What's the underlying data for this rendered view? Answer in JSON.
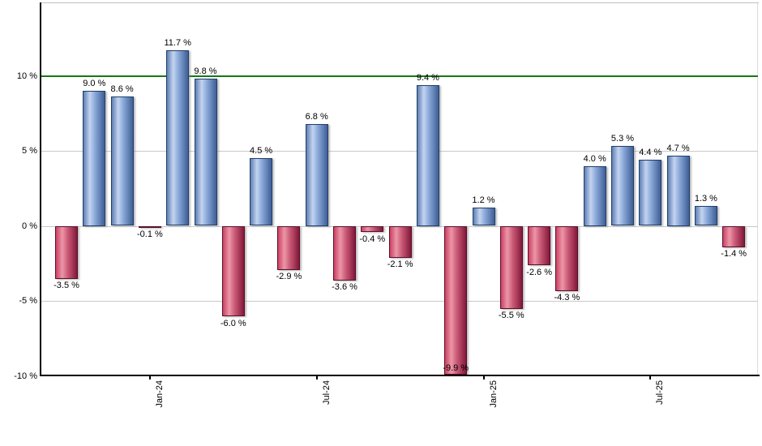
{
  "chart_data": {
    "type": "bar",
    "title": "",
    "values": [
      -3.5,
      9.0,
      8.6,
      -0.1,
      11.7,
      9.8,
      -6.0,
      4.5,
      -2.9,
      6.8,
      -3.6,
      -0.4,
      -2.1,
      9.4,
      -9.9,
      1.2,
      -5.5,
      -2.6,
      -4.3,
      4.0,
      5.3,
      4.4,
      4.7,
      1.3,
      -1.4
    ],
    "bar_labels": [
      "-3.5 %",
      "9.0 %",
      "8.6 %",
      "-0.1 %",
      "11.7 %",
      "9.8 %",
      "-6.0 %",
      "4.5 %",
      "-2.9 %",
      "6.8 %",
      "-3.6 %",
      "-0.4 %",
      "-2.1 %",
      "9.4 %",
      "-9.9 %",
      "1.2 %",
      "-5.5 %",
      "-2.6 %",
      "-4.3 %",
      "4.0 %",
      "5.3 %",
      "4.4 %",
      "4.7 %",
      "1.3 %",
      "-1.4 %"
    ],
    "x_tick_labels": [
      "Jan-24",
      "Jul-24",
      "Jan-25",
      "Jul-25"
    ],
    "x_tick_bar_index": [
      3,
      9,
      15,
      21
    ],
    "y_tick_labels": [
      "10 %",
      "5 %",
      "0 %",
      "-5 %",
      "-10 %"
    ],
    "y_tick_values": [
      10,
      5,
      0,
      -5,
      -10
    ],
    "ylim": [
      -10,
      14.8
    ],
    "grid": true,
    "legend": false,
    "reference_line": {
      "value": 10
    },
    "colors": {
      "reference_line": "#157a15",
      "grid": "#c9c9c9",
      "axis": "#000000",
      "positive_edge": "#5f7fb2",
      "positive_light": "#c3d4f0",
      "positive_mid": "#89a7d8",
      "positive_dark": "#3e5f95",
      "positive_border": "#1f3f6b",
      "negative_edge": "#cc4163",
      "negative_light": "#ec96a8",
      "negative_mid": "#cc5c78",
      "negative_dark": "#83173a",
      "negative_border": "#58102a"
    }
  }
}
